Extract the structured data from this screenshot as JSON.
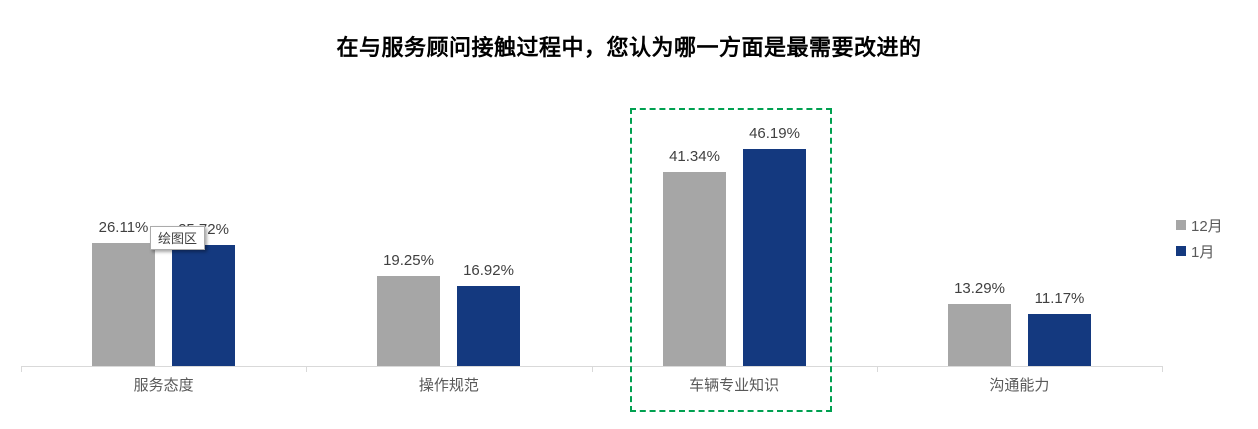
{
  "title": "在与服务顾问接触过程中，您认为哪一方面是最需要改进的",
  "plot_tooltip": "绘图区",
  "legend": {
    "items": [
      {
        "label": "12月",
        "color": "#a6a6a6"
      },
      {
        "label": "1月",
        "color": "#14397f"
      }
    ]
  },
  "colors": {
    "bar_gray": "#a6a6a6",
    "bar_blue": "#14397f",
    "highlight_green": "#00a050",
    "axis_line": "#d9d9d9",
    "data_label": "#404040",
    "category_label": "#595959",
    "title_text": "#000000"
  },
  "chart_data": {
    "type": "bar",
    "categories": [
      "服务态度",
      "操作规范",
      "车辆专业知识",
      "沟通能力"
    ],
    "series": [
      {
        "name": "12月",
        "color": "#a6a6a6",
        "values": [
          26.11,
          19.25,
          41.34,
          13.29
        ]
      },
      {
        "name": "1月",
        "color": "#14397f",
        "values": [
          25.72,
          16.92,
          46.19,
          11.17
        ]
      }
    ],
    "data_labels": {
      "12月": [
        "26.11%",
        "19.25%",
        "41.34%",
        "13.29%"
      ],
      "1月": [
        "25.72%",
        "16.92%",
        "46.19%",
        "11.17%"
      ]
    },
    "value_unit": "%",
    "ylim": [
      0,
      50
    ],
    "grid": false,
    "y_axis_visible": false,
    "legend_position": "right",
    "highlight": {
      "category": "车辆专业知识",
      "style": "dashed-green-box",
      "color": "#00a050"
    }
  }
}
